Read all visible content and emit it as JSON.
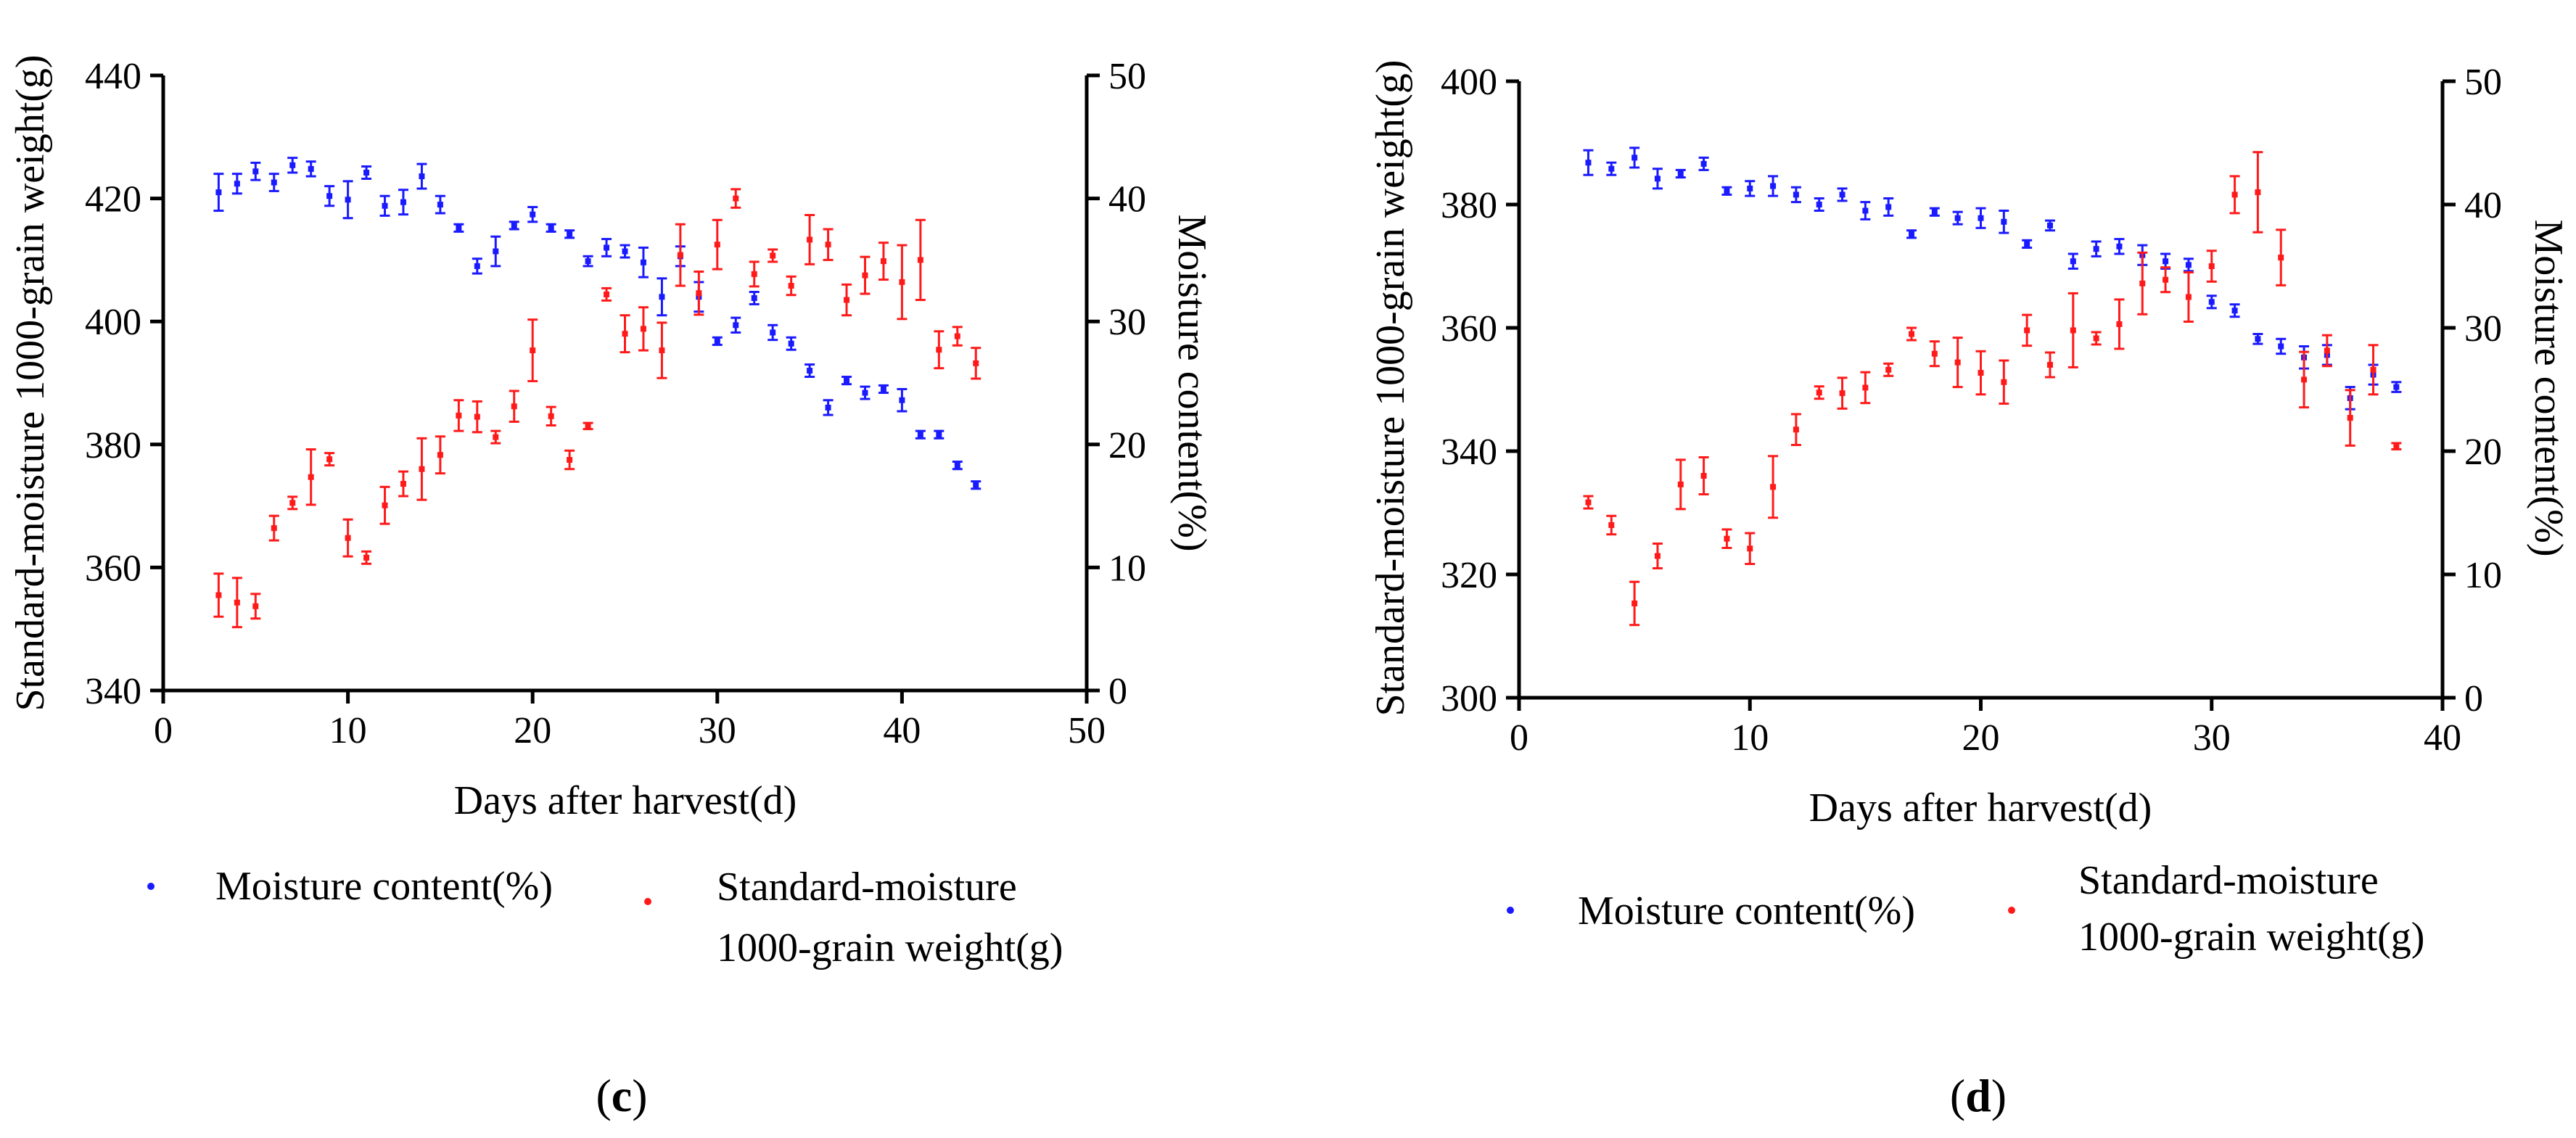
{
  "colors": {
    "moisture": "#1a1aff",
    "weight": "#ff1a1a",
    "axis": "#000000"
  },
  "chart_data": [
    {
      "panel_label": "(c)",
      "panel_letter": "c",
      "type": "scatter",
      "xlabel": "Days after harvest(d)",
      "ylabel_left": "Standard-moisture 1000-grain weight(g)",
      "ylabel_right": "Moisture content(%)",
      "xlim": [
        0,
        50
      ],
      "xticks": [
        "0",
        "10",
        "20",
        "30",
        "40",
        "50"
      ],
      "ylim_left": [
        340,
        440
      ],
      "yticks_left": [
        "340",
        "360",
        "380",
        "400",
        "420",
        "440"
      ],
      "ylim_right": [
        0,
        50
      ],
      "yticks_right": [
        "0",
        "10",
        "20",
        "30",
        "40",
        "50"
      ],
      "legend": [
        "Moisture content(%)",
        "Standard-moisture",
        "1000-grain weight(g)"
      ],
      "series": [
        {
          "name": "Moisture content(%)",
          "axis": "right",
          "x": [
            3,
            4,
            5,
            6,
            7,
            8,
            9,
            10,
            11,
            12,
            13,
            14,
            15,
            16,
            17,
            18,
            19,
            20,
            21,
            22,
            23,
            24,
            25,
            26,
            27,
            28,
            29,
            30,
            31,
            32,
            33,
            34,
            35,
            36,
            37,
            38,
            39,
            40,
            41,
            42,
            43,
            44
          ],
          "y": [
            40.5,
            41.2,
            42.2,
            41.3,
            42.7,
            42.4,
            40.2,
            39.9,
            42.1,
            39.4,
            39.7,
            41.8,
            39.5,
            37.6,
            34.5,
            35.7,
            37.8,
            38.7,
            37.6,
            37.1,
            34.9,
            36.0,
            35.7,
            34.8,
            32.0,
            35.3,
            32.0,
            28.4,
            29.7,
            31.9,
            29.1,
            28.2,
            26.0,
            23.0,
            25.2,
            24.2,
            24.5,
            23.6,
            20.8,
            20.8,
            18.3,
            16.7
          ],
          "err": [
            1.5,
            0.8,
            0.7,
            0.7,
            0.6,
            0.6,
            0.8,
            1.5,
            0.5,
            0.8,
            1.0,
            1.0,
            0.7,
            0.3,
            0.6,
            1.2,
            0.3,
            0.6,
            0.3,
            0.3,
            0.4,
            0.7,
            0.5,
            1.2,
            1.5,
            0.8,
            1.2,
            0.3,
            0.6,
            0.5,
            0.6,
            0.5,
            0.5,
            0.6,
            0.3,
            0.5,
            0.3,
            0.9,
            0.3,
            0.3,
            0.3,
            0.3
          ]
        },
        {
          "name": "Standard-moisture 1000-grain weight(g)",
          "axis": "left",
          "x": [
            3,
            4,
            5,
            6,
            7,
            8,
            9,
            10,
            11,
            12,
            13,
            14,
            15,
            16,
            17,
            18,
            19,
            20,
            21,
            22,
            23,
            24,
            25,
            26,
            27,
            28,
            29,
            30,
            31,
            32,
            33,
            34,
            35,
            36,
            37,
            38,
            39,
            40,
            41,
            42,
            43,
            44
          ],
          "y": [
            355.5,
            354.3,
            353.7,
            366.4,
            370.5,
            374.7,
            377.6,
            364.8,
            361.6,
            370.1,
            373.6,
            376.0,
            378.3,
            384.7,
            384.5,
            381.2,
            386.2,
            395.3,
            384.6,
            377.5,
            383.0,
            404.4,
            398.0,
            398.8,
            395.3,
            410.8,
            404.6,
            412.5,
            420.0,
            407.7,
            410.7,
            405.8,
            413.3,
            412.5,
            403.5,
            407.5,
            409.8,
            406.4,
            410.0,
            395.4,
            397.6,
            393.2
          ],
          "err": [
            3.5,
            4.0,
            2.0,
            2.0,
            1.0,
            4.5,
            1.0,
            3.0,
            1.0,
            3.0,
            2.0,
            5.0,
            3.0,
            2.5,
            2.5,
            1.0,
            2.5,
            5.0,
            1.5,
            1.5,
            0.5,
            1.0,
            3.0,
            3.5,
            4.5,
            5.0,
            3.5,
            4.0,
            1.5,
            2.0,
            1.0,
            1.5,
            4.0,
            2.5,
            2.5,
            3.0,
            3.0,
            6.0,
            6.5,
            3.0,
            1.5,
            2.5
          ]
        }
      ]
    },
    {
      "panel_label": "(d)",
      "panel_letter": "d",
      "type": "scatter",
      "xlabel": "Days after harvest(d)",
      "ylabel_left": "Standard-moisture 1000-grain weight(g)",
      "ylabel_right": "Moisture content(%)",
      "xlim": [
        0,
        40
      ],
      "xticks": [
        "0",
        "10",
        "20",
        "30",
        "40"
      ],
      "ylim_left": [
        300,
        400
      ],
      "yticks_left": [
        "300",
        "320",
        "340",
        "360",
        "380",
        "400"
      ],
      "ylim_right": [
        0,
        50
      ],
      "yticks_right": [
        "0",
        "10",
        "20",
        "30",
        "40",
        "50"
      ],
      "legend": [
        "Moisture content(%)",
        "Standard-moisture",
        "1000-grain weight(g)"
      ],
      "series": [
        {
          "name": "Moisture content(%)",
          "axis": "right",
          "x": [
            3,
            4,
            5,
            6,
            7,
            8,
            9,
            10,
            11,
            12,
            13,
            14,
            15,
            16,
            17,
            18,
            19,
            20,
            21,
            22,
            23,
            24,
            25,
            26,
            27,
            28,
            29,
            30,
            31,
            32,
            33,
            34,
            35,
            36,
            37,
            38
          ],
          "y": [
            43.4,
            42.9,
            43.8,
            42.1,
            42.5,
            43.3,
            41.1,
            41.3,
            41.5,
            40.8,
            40.0,
            40.8,
            39.5,
            39.8,
            37.6,
            39.4,
            38.9,
            38.9,
            38.6,
            36.8,
            38.3,
            35.4,
            36.4,
            36.6,
            35.9,
            35.4,
            35.1,
            32.1,
            31.4,
            29.1,
            28.5,
            27.6,
            27.8,
            24.3,
            26.2,
            25.2
          ],
          "err": [
            1.0,
            0.5,
            0.8,
            0.8,
            0.3,
            0.5,
            0.3,
            0.6,
            0.8,
            0.6,
            0.5,
            0.5,
            0.7,
            0.7,
            0.3,
            0.3,
            0.5,
            0.8,
            0.9,
            0.3,
            0.4,
            0.6,
            0.6,
            0.6,
            0.8,
            0.6,
            0.5,
            0.5,
            0.5,
            0.4,
            0.6,
            0.9,
            0.8,
            0.9,
            0.8,
            0.4
          ]
        },
        {
          "name": "Standard-moisture 1000-grain weight(g)",
          "axis": "left",
          "x": [
            3,
            4,
            5,
            6,
            7,
            8,
            9,
            10,
            11,
            12,
            13,
            14,
            15,
            16,
            17,
            18,
            19,
            20,
            21,
            22,
            23,
            24,
            25,
            26,
            27,
            28,
            29,
            30,
            31,
            32,
            33,
            34,
            35,
            36,
            37,
            38
          ],
          "y": [
            331.7,
            328.0,
            315.3,
            323.0,
            334.6,
            336.0,
            325.8,
            324.2,
            334.2,
            343.5,
            349.5,
            349.4,
            350.3,
            353.2,
            359.0,
            355.8,
            354.4,
            352.7,
            351.2,
            359.6,
            354.0,
            359.6,
            358.3,
            360.6,
            367.2,
            367.8,
            365.0,
            370.0,
            381.6,
            382.0,
            371.4,
            351.6,
            356.3,
            345.4,
            353.2,
            340.8
          ],
          "err": [
            1.0,
            1.5,
            3.5,
            2.0,
            4.0,
            3.0,
            1.5,
            2.5,
            5.0,
            2.5,
            1.0,
            2.5,
            2.5,
            1.0,
            1.0,
            2.0,
            4.0,
            3.5,
            3.5,
            2.5,
            2.0,
            6.0,
            1.0,
            4.0,
            5.0,
            2.0,
            4.0,
            2.5,
            3.0,
            6.5,
            4.5,
            4.5,
            2.5,
            4.5,
            4.0,
            0.5
          ]
        }
      ]
    }
  ]
}
